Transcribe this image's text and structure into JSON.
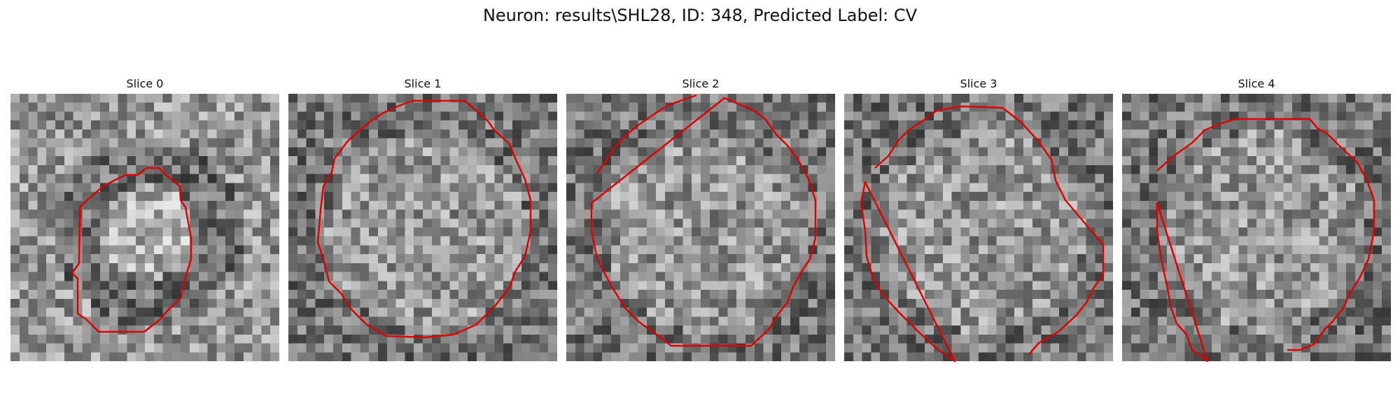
{
  "figure": {
    "title": "Neuron: results\\SHL28, ID: 348, Predicted Label: CV"
  },
  "colors": {
    "contour": "#e00000",
    "colormap": "gray"
  },
  "panels": [
    {
      "title": "Slice 0"
    },
    {
      "title": "Slice 1"
    },
    {
      "title": "Slice 2"
    },
    {
      "title": "Slice 3"
    },
    {
      "title": "Slice 4"
    }
  ]
}
